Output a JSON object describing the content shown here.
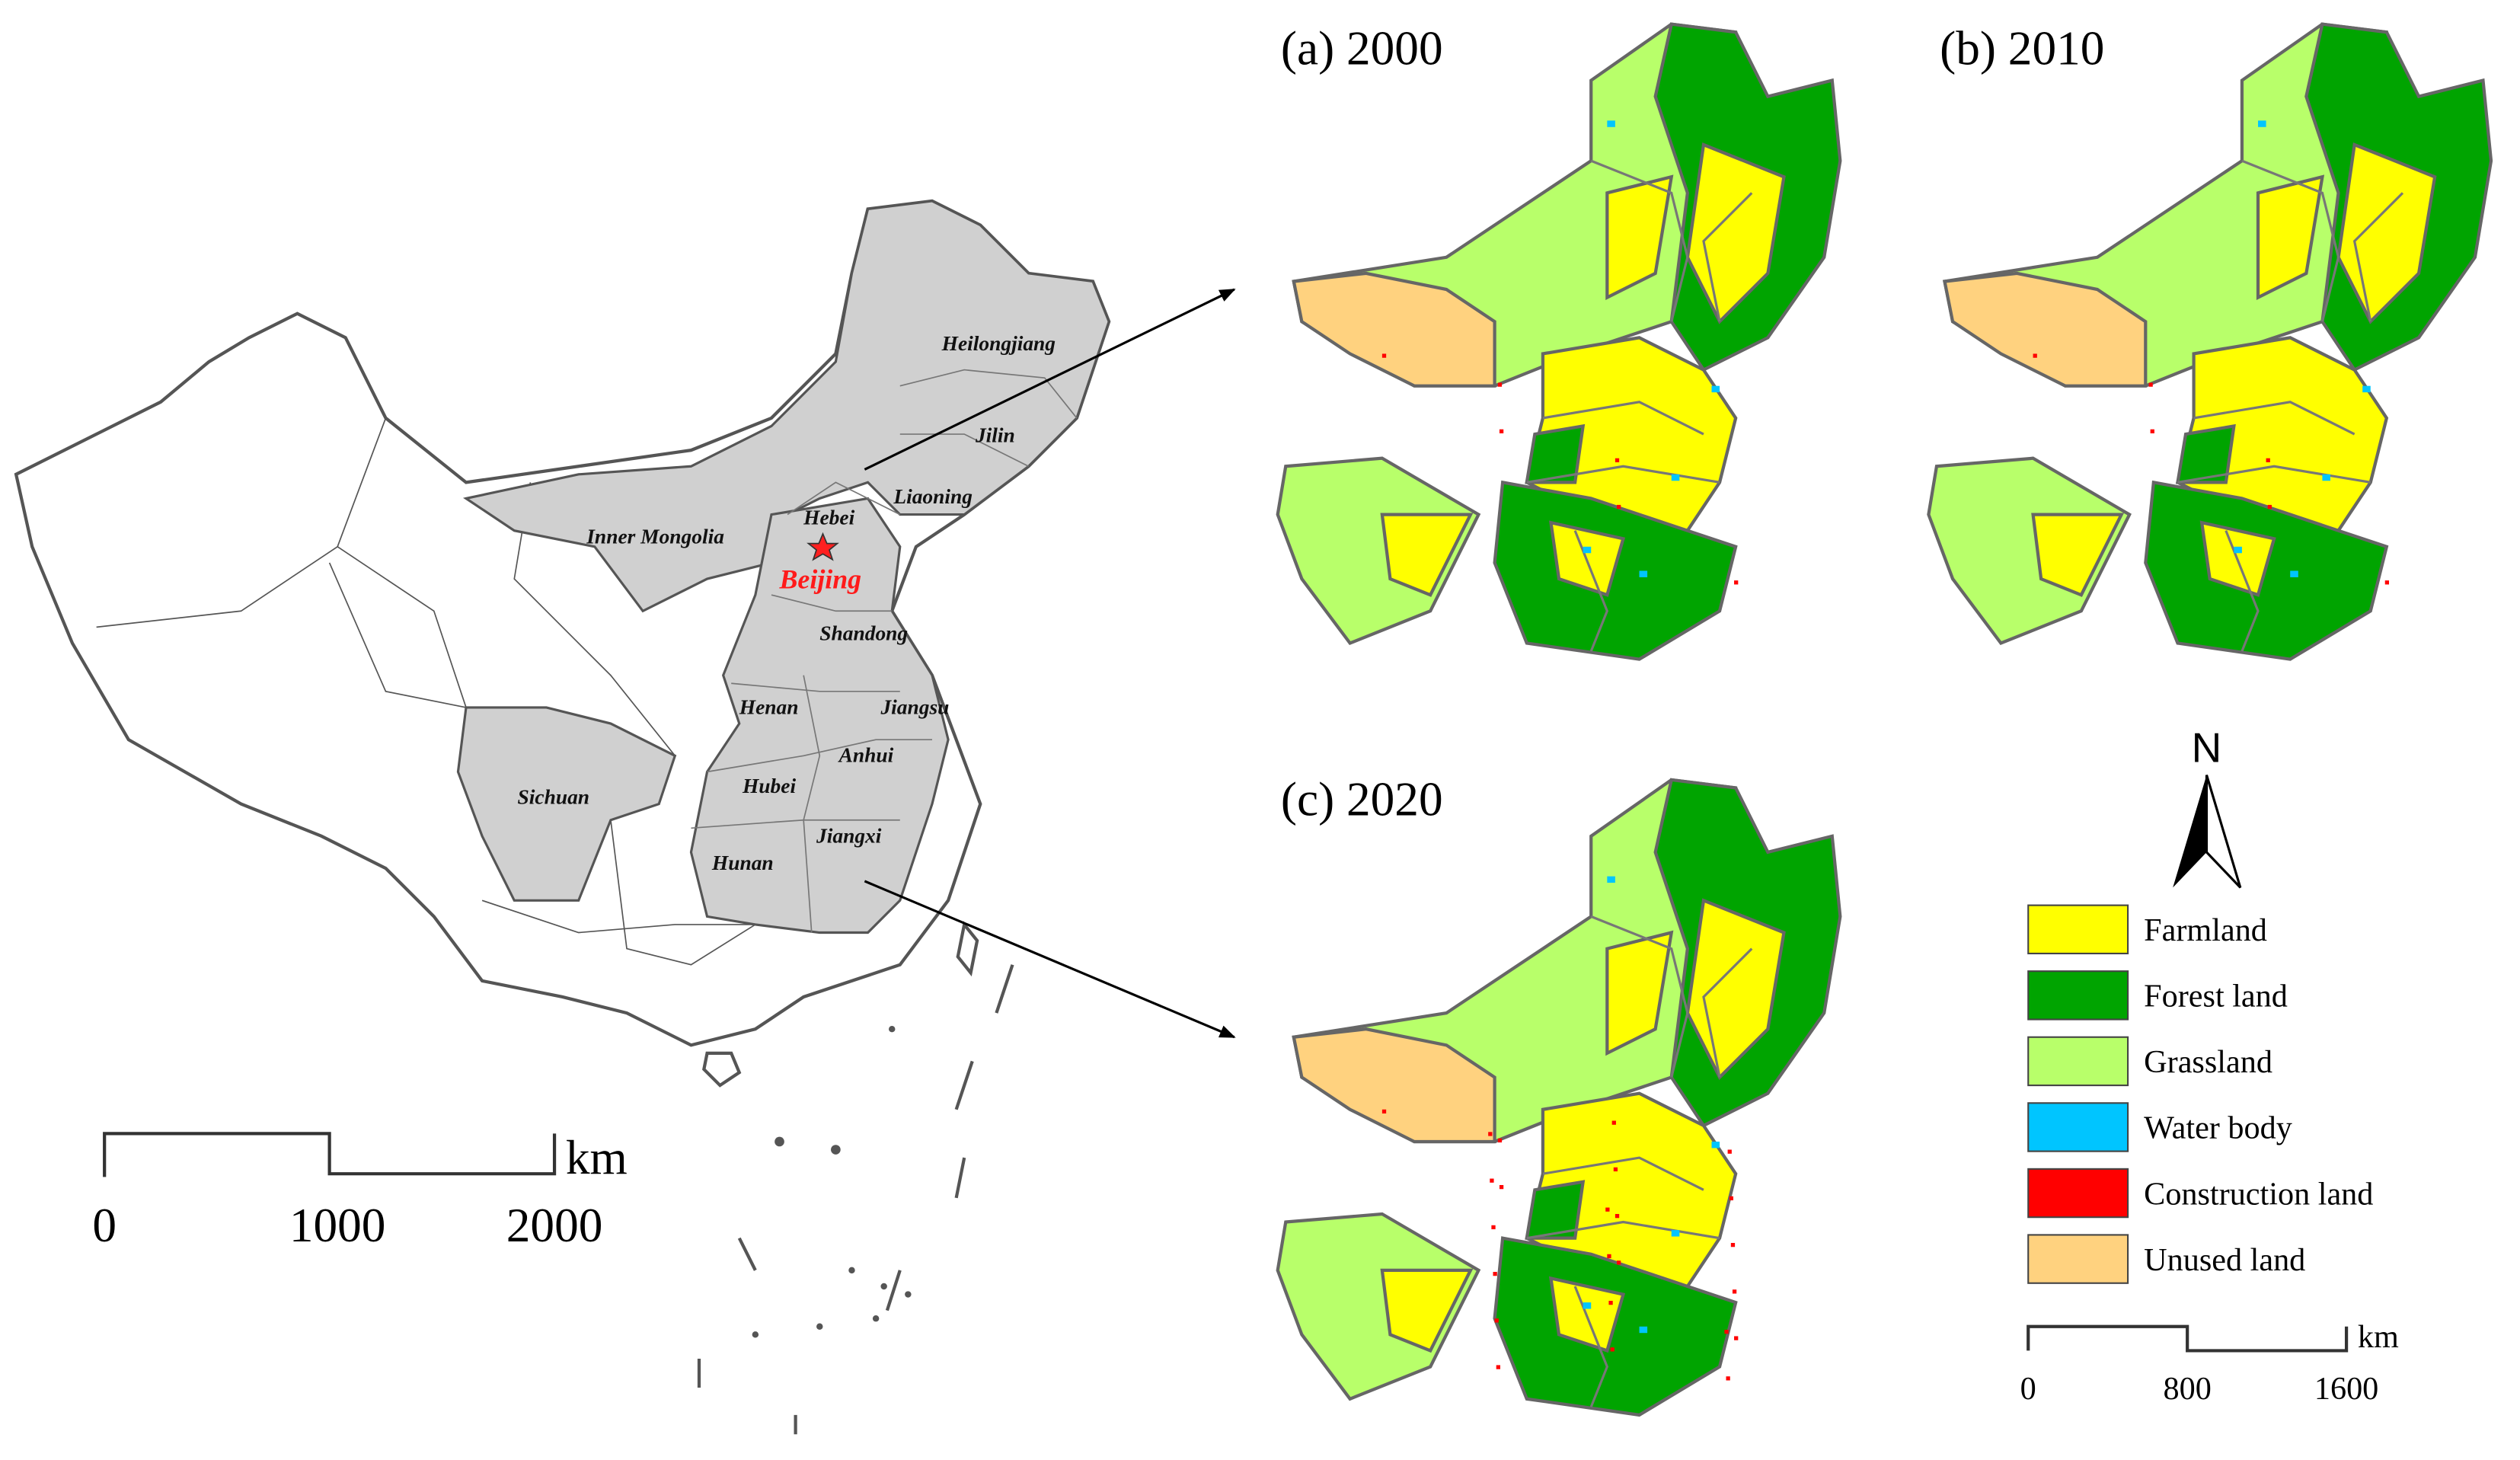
{
  "overview_map": {
    "provinces": [
      "Heilongjiang",
      "Jilin",
      "Liaoning",
      "Inner Mongolia",
      "Hebei",
      "Beijing",
      "Shandong",
      "Henan",
      "Jiangsu",
      "Anhui",
      "Hubei",
      "Sichuan",
      "Hunan",
      "Jiangxi"
    ],
    "scale_bar": {
      "ticks": [
        0,
        1000,
        2000
      ],
      "unit": "km"
    }
  },
  "panels": [
    {
      "label": "(a) 2000"
    },
    {
      "label": "(b) 2010"
    },
    {
      "label": "(c) 2020"
    }
  ],
  "north": "N",
  "legend": {
    "items": [
      {
        "name": "Farmland",
        "color": "#ffff00"
      },
      {
        "name": "Forest land",
        "color": "#00a400"
      },
      {
        "name": "Grassland",
        "color": "#b8ff6a"
      },
      {
        "name": "Water body",
        "color": "#00c5ff"
      },
      {
        "name": "Construction land",
        "color": "#ff0000"
      },
      {
        "name": "Unused land",
        "color": "#ffd27f"
      }
    ]
  },
  "scale_bar": {
    "ticks": [
      0,
      800,
      1600
    ],
    "unit": "km"
  }
}
